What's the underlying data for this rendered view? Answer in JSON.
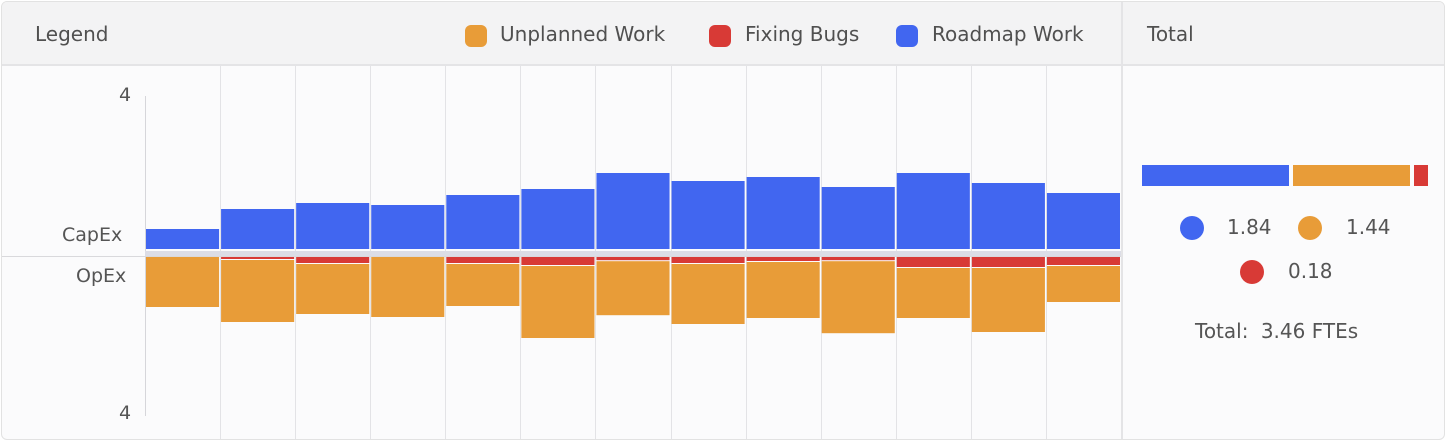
{
  "header": {
    "legend_title": "Legend",
    "total_title": "Total",
    "legend": [
      {
        "label": "Unplanned Work",
        "color": "#e89c38"
      },
      {
        "label": "Fixing Bugs",
        "color": "#d83a36"
      },
      {
        "label": "Roadmap Work",
        "color": "#4166f0"
      }
    ]
  },
  "chart_data": {
    "type": "bar",
    "top_label": "CapEx",
    "bottom_label": "OpEx",
    "y_top_tick": "4",
    "y_bottom_tick": "4",
    "ylim_top": [
      0,
      4
    ],
    "ylim_bottom": [
      0,
      4
    ],
    "grid": true,
    "periods": 13,
    "series": [
      {
        "name": "Roadmap Work",
        "color": "#4166f0",
        "side": "top",
        "values": [
          0.5,
          1.0,
          1.15,
          1.1,
          1.35,
          1.5,
          1.9,
          1.7,
          1.8,
          1.55,
          1.9,
          1.65,
          1.4
        ]
      },
      {
        "name": "Fixing Bugs",
        "color": "#d83a36",
        "side": "bottom",
        "values": [
          0.0,
          0.05,
          0.15,
          0.0,
          0.15,
          0.2,
          0.08,
          0.15,
          0.1,
          0.08,
          0.25,
          0.25,
          0.2
        ]
      },
      {
        "name": "Unplanned Work",
        "color": "#e89c38",
        "side": "bottom",
        "values": [
          1.25,
          1.55,
          1.25,
          1.5,
          1.05,
          1.8,
          1.35,
          1.5,
          1.4,
          1.8,
          1.25,
          1.6,
          0.9
        ]
      }
    ]
  },
  "total": {
    "roadmap": {
      "value": "1.84",
      "color": "#4166f0",
      "fraction": 0.53
    },
    "unplanned": {
      "value": "1.44",
      "color": "#e89c38",
      "fraction": 0.42
    },
    "bugs": {
      "value": "0.18",
      "color": "#d83a36",
      "fraction": 0.05
    },
    "total_label": "Total:",
    "total_value": "3.46 FTEs"
  }
}
